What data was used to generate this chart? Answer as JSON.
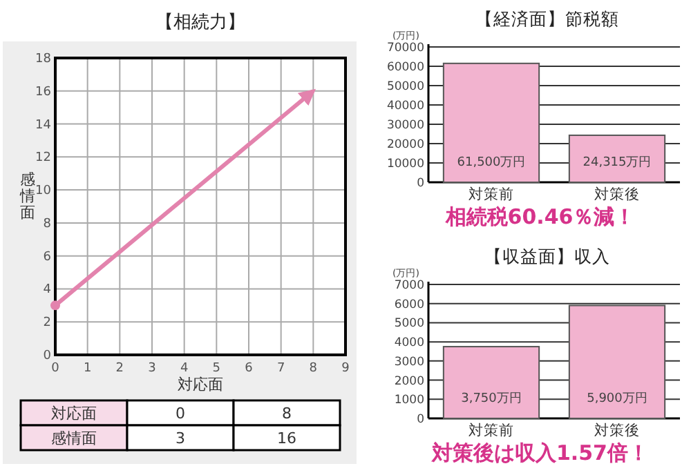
{
  "chart_data": [
    {
      "type": "line",
      "title": "【相続力】",
      "xlabel": "対応面",
      "ylabel": "感情面",
      "xlim": [
        0,
        9
      ],
      "xticks": [
        0,
        1,
        2,
        3,
        4,
        5,
        6,
        7,
        8,
        9
      ],
      "ylim": [
        0,
        18
      ],
      "yticks": [
        0,
        2,
        4,
        6,
        8,
        10,
        12,
        14,
        16,
        18
      ],
      "grid": true,
      "series": [
        {
          "color": "#e383ad",
          "x": [
            0,
            8
          ],
          "values": [
            3,
            16
          ]
        }
      ]
    },
    {
      "type": "other",
      "y_categories": [
        "対応面",
        "感情面"
      ],
      "cell_labels": [
        [
          "0",
          "8"
        ],
        [
          "3",
          "16"
        ]
      ]
    },
    {
      "type": "bar",
      "title": "【経済面】節税額",
      "ylabel": "(万円)",
      "categories": [
        "対策前",
        "対策後"
      ],
      "ylim": [
        0,
        70000
      ],
      "yticks": [
        0,
        10000,
        20000,
        30000,
        40000,
        50000,
        60000,
        70000
      ],
      "grid": "y",
      "series": [
        {
          "color": "#f2b3cf",
          "values": [
            61500,
            24315
          ],
          "value_labels": [
            "61,500万円",
            "24,315万円"
          ]
        }
      ],
      "annotations": [
        "相続税60.46％減！"
      ]
    },
    {
      "type": "bar",
      "title": "【収益面】収入",
      "ylabel": "(万円)",
      "categories": [
        "対策前",
        "対策後"
      ],
      "ylim": [
        0,
        7000
      ],
      "yticks": [
        0,
        1000,
        2000,
        3000,
        4000,
        5000,
        6000,
        7000
      ],
      "grid": "y",
      "series": [
        {
          "color": "#f2b3cf",
          "values": [
            3750,
            5900
          ],
          "value_labels": [
            "3,750万円",
            "5,900万円"
          ]
        }
      ],
      "annotations": [
        "対策後は収入1.57倍！"
      ]
    }
  ]
}
